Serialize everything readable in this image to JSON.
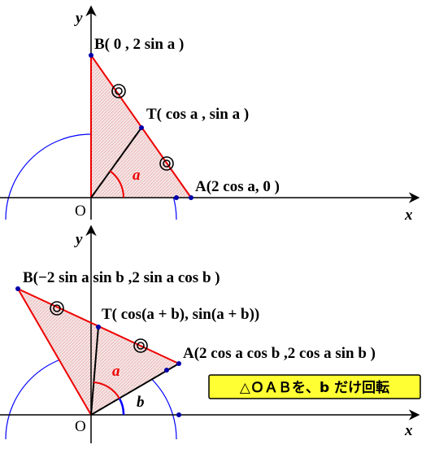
{
  "top": {
    "y_axis": "y",
    "x_axis": "x",
    "origin": "O",
    "angle": "a",
    "point_b": "B( 0 , 2 sin a )",
    "point_t": "T( cos a , sin a )",
    "point_a": "A(2 cos a,  0 )"
  },
  "bottom": {
    "y_axis": "y",
    "x_axis": "x",
    "origin": "O",
    "angle_a": "a",
    "angle_b": "b",
    "point_b": "B(−2 sin a  sin b ,2 sin a  cos b )",
    "point_t": "T( cos(a + b), sin(a + b))",
    "point_a": "A(2 cos a  cos b ,2 cos a  sin b )",
    "caption": "△ＯＡＢを、b だけ回転"
  }
}
